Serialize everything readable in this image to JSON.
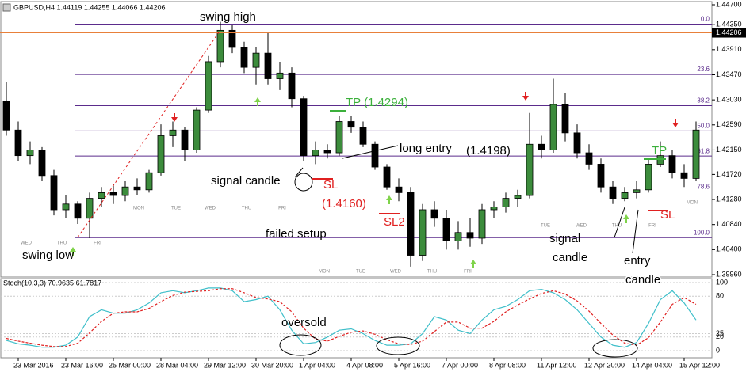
{
  "chart_data": [
    {
      "type": "candlestick",
      "title": "GBPUSD,H4 1.44119 1.44255 1.44066 1.44206",
      "up_color": "#3c8c3c",
      "down_color": "#000000",
      "open": [
        1.43,
        1.425,
        1.4205,
        1.4215,
        1.417,
        1.411,
        1.412,
        1.4095,
        1.413,
        1.414,
        1.4135,
        1.415,
        1.4145,
        1.4175,
        1.424,
        1.425,
        1.4215,
        1.4285,
        1.437,
        1.4425,
        1.4395,
        1.436,
        1.4385,
        1.434,
        1.435,
        1.4305,
        1.4205,
        1.4215,
        1.421,
        1.4265,
        1.4255,
        1.4225,
        1.4185,
        1.415,
        1.414,
        1.403,
        1.411,
        1.4095,
        1.4055,
        1.407,
        1.406,
        1.411,
        1.4115,
        1.413,
        1.4135,
        1.4225,
        1.4215,
        1.4295,
        1.4245,
        1.421,
        1.419,
        1.415,
        1.413,
        1.414,
        1.4145,
        1.419,
        1.4205,
        1.4175,
        1.4165
      ],
      "high": [
        1.4335,
        1.4265,
        1.423,
        1.422,
        1.418,
        1.4135,
        1.4125,
        1.414,
        1.415,
        1.4155,
        1.416,
        1.4165,
        1.418,
        1.426,
        1.4265,
        1.4255,
        1.429,
        1.438,
        1.444,
        1.4435,
        1.4405,
        1.4395,
        1.442,
        1.437,
        1.436,
        1.431,
        1.423,
        1.4225,
        1.4275,
        1.4275,
        1.4265,
        1.423,
        1.419,
        1.4165,
        1.415,
        1.412,
        1.4125,
        1.411,
        1.409,
        1.4095,
        1.412,
        1.4125,
        1.414,
        1.4145,
        1.428,
        1.424,
        1.434,
        1.4315,
        1.426,
        1.4225,
        1.42,
        1.416,
        1.415,
        1.416,
        1.42,
        1.423,
        1.4215,
        1.419,
        1.4265
      ],
      "low": [
        1.424,
        1.4195,
        1.419,
        1.416,
        1.41,
        1.4095,
        1.4085,
        1.406,
        1.4115,
        1.412,
        1.4125,
        1.4135,
        1.414,
        1.417,
        1.422,
        1.4195,
        1.421,
        1.428,
        1.436,
        1.4385,
        1.435,
        1.433,
        1.433,
        1.432,
        1.429,
        1.4195,
        1.419,
        1.42,
        1.4205,
        1.4245,
        1.422,
        1.418,
        1.4145,
        1.4125,
        1.401,
        1.402,
        1.408,
        1.404,
        1.404,
        1.4045,
        1.405,
        1.4095,
        1.4105,
        1.4115,
        1.413,
        1.42,
        1.421,
        1.423,
        1.42,
        1.418,
        1.414,
        1.412,
        1.4125,
        1.413,
        1.414,
        1.4185,
        1.4165,
        1.415,
        1.416
      ],
      "close": [
        1.425,
        1.4205,
        1.4215,
        1.417,
        1.411,
        1.412,
        1.4095,
        1.413,
        1.414,
        1.4135,
        1.415,
        1.4145,
        1.4175,
        1.424,
        1.425,
        1.4215,
        1.4285,
        1.437,
        1.4425,
        1.4395,
        1.436,
        1.4385,
        1.434,
        1.435,
        1.4305,
        1.4205,
        1.4215,
        1.421,
        1.4265,
        1.4255,
        1.4225,
        1.4185,
        1.415,
        1.414,
        1.403,
        1.411,
        1.4095,
        1.4055,
        1.407,
        1.406,
        1.411,
        1.4115,
        1.413,
        1.4135,
        1.4225,
        1.4215,
        1.4295,
        1.4245,
        1.421,
        1.419,
        1.415,
        1.413,
        1.414,
        1.4145,
        1.419,
        1.4205,
        1.4175,
        1.4165,
        1.425
      ],
      "ylim": [
        1.3996,
        1.447
      ],
      "yticks": [
        {
          "value": 1.447,
          "label": "1.44700"
        },
        {
          "value": 1.4435,
          "label": "1.44350"
        },
        {
          "value": 1.4391,
          "label": "1.43910"
        },
        {
          "value": 1.4347,
          "label": "1.43470"
        },
        {
          "value": 1.4303,
          "label": "1.43030"
        },
        {
          "value": 1.4259,
          "label": "1.42590"
        },
        {
          "value": 1.4215,
          "label": "1.42150"
        },
        {
          "value": 1.4172,
          "label": "1.41720"
        },
        {
          "value": 1.4128,
          "label": "1.41280"
        },
        {
          "value": 1.4084,
          "label": "1.40840"
        },
        {
          "value": 1.404,
          "label": "1.40400"
        },
        {
          "value": 1.3996,
          "label": "1.39960"
        }
      ],
      "current_price": {
        "value": 1.44206,
        "label": "1.44206"
      },
      "fib": {
        "high": 1.4436,
        "low": 1.4061,
        "color": "#5b2c8c",
        "levels": [
          {
            "value": 0,
            "label": "0.0"
          },
          23.6,
          38.2,
          {
            "value": 50,
            "label": "50.0"
          },
          61.8,
          78.6,
          {
            "value": 100,
            "label": "100.0"
          }
        ]
      },
      "day_labels": [
        "WED",
        "THU",
        "FRI",
        "MON",
        "TUE",
        "WED",
        "THU",
        "FRI",
        "MON",
        "TUE",
        "WED",
        "THU",
        "FRI",
        "TUE",
        "WED",
        "THU",
        "FRI",
        "MON"
      ],
      "annotations": [
        "swing high",
        "swing low",
        "signal candle",
        "TP (1.4294)",
        "long entry",
        "(1.4198)",
        "SL",
        "(1.4160)",
        "SL2",
        "failed setup",
        "signal",
        "candle",
        "entry",
        "candle",
        "TP",
        "SL",
        "oversold"
      ]
    },
    {
      "type": "line",
      "title": "Stoch(10,3,3) 70.9635 61.7817",
      "categories": [
        null,
        "23 Mar 2016",
        null,
        null,
        null,
        "23 Mar 16:00",
        null,
        null,
        null,
        "25 Mar 00:00",
        null,
        null,
        null,
        "28 Mar 04:00",
        null,
        null,
        null,
        "29 Mar 12:00",
        null,
        null,
        null,
        "30 Mar 20:00",
        null,
        null,
        null,
        "1 Apr 04:00",
        null,
        null,
        null,
        "4 Apr 08:00",
        null,
        null,
        null,
        "5 Apr 16:00",
        null,
        null,
        null,
        "7 Apr 00:00",
        null,
        null,
        null,
        "8 Apr 08:00",
        null,
        null,
        null,
        "11 Apr 12:00",
        null,
        null,
        null,
        "12 Apr 20:00",
        null,
        null,
        null,
        "14 Apr 04:00",
        null,
        null,
        null,
        "15 Apr 12:00",
        null
      ],
      "series": [
        {
          "color": "#3fbfca",
          "values": [
            15,
            10,
            8,
            5,
            5,
            8,
            20,
            50,
            60,
            55,
            55,
            60,
            70,
            85,
            88,
            85,
            88,
            92,
            92,
            88,
            72,
            75,
            80,
            60,
            30,
            10,
            12,
            20,
            30,
            32,
            25,
            15,
            8,
            8,
            10,
            25,
            50,
            45,
            30,
            25,
            45,
            60,
            65,
            75,
            88,
            90,
            85,
            75,
            60,
            40,
            20,
            8,
            5,
            12,
            40,
            75,
            88,
            70,
            45
          ]
        },
        {
          "color": "#e02020",
          "dashed": true,
          "values": [
            18,
            14,
            11,
            8,
            6,
            6,
            11,
            26,
            43,
            55,
            57,
            57,
            62,
            72,
            81,
            86,
            87,
            88,
            91,
            91,
            85,
            78,
            76,
            72,
            57,
            33,
            17,
            14,
            21,
            27,
            29,
            24,
            16,
            10,
            9,
            14,
            28,
            42,
            42,
            33,
            33,
            43,
            57,
            67,
            76,
            84,
            88,
            83,
            73,
            58,
            40,
            23,
            11,
            8,
            19,
            42,
            68,
            78,
            68
          ]
        }
      ],
      "ylim": [
        0,
        100
      ],
      "yticks": [
        100,
        80,
        25,
        20,
        0
      ]
    }
  ]
}
